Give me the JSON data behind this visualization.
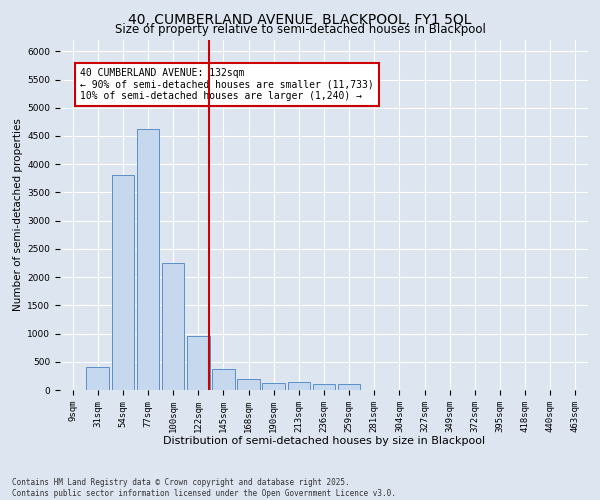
{
  "title": "40, CUMBERLAND AVENUE, BLACKPOOL, FY1 5QL",
  "subtitle": "Size of property relative to semi-detached houses in Blackpool",
  "xlabel": "Distribution of semi-detached houses by size in Blackpool",
  "ylabel": "Number of semi-detached properties",
  "footnote": "Contains HM Land Registry data © Crown copyright and database right 2025.\nContains public sector information licensed under the Open Government Licence v3.0.",
  "bar_labels": [
    "9sqm",
    "31sqm",
    "54sqm",
    "77sqm",
    "100sqm",
    "122sqm",
    "145sqm",
    "168sqm",
    "190sqm",
    "213sqm",
    "236sqm",
    "259sqm",
    "281sqm",
    "304sqm",
    "327sqm",
    "349sqm",
    "372sqm",
    "395sqm",
    "418sqm",
    "440sqm",
    "463sqm"
  ],
  "bar_values": [
    0,
    400,
    3800,
    4620,
    2250,
    950,
    380,
    200,
    130,
    150,
    100,
    100,
    0,
    0,
    0,
    0,
    0,
    0,
    0,
    0,
    0
  ],
  "bar_color": "#c5d8ee",
  "bar_edge_color": "#5b8ec9",
  "ylim_max": 6200,
  "yticks": [
    0,
    500,
    1000,
    1500,
    2000,
    2500,
    3000,
    3500,
    4000,
    4500,
    5000,
    5500,
    6000
  ],
  "vline_pos": 5.435,
  "annotation_text": "40 CUMBERLAND AVENUE: 132sqm\n← 90% of semi-detached houses are smaller (11,733)\n10% of semi-detached houses are larger (1,240) →",
  "annotation_box_color": "#ffffff",
  "annotation_box_edge_color": "#cc0000",
  "background_color": "#dde6f0",
  "plot_background": "#dde6f0",
  "grid_color": "#ffffff",
  "vline_color": "#cc0000",
  "title_fontsize": 10,
  "subtitle_fontsize": 8.5,
  "tick_fontsize": 6.5,
  "ylabel_fontsize": 7.5,
  "xlabel_fontsize": 8,
  "annotation_fontsize": 7,
  "footnote_fontsize": 5.5
}
